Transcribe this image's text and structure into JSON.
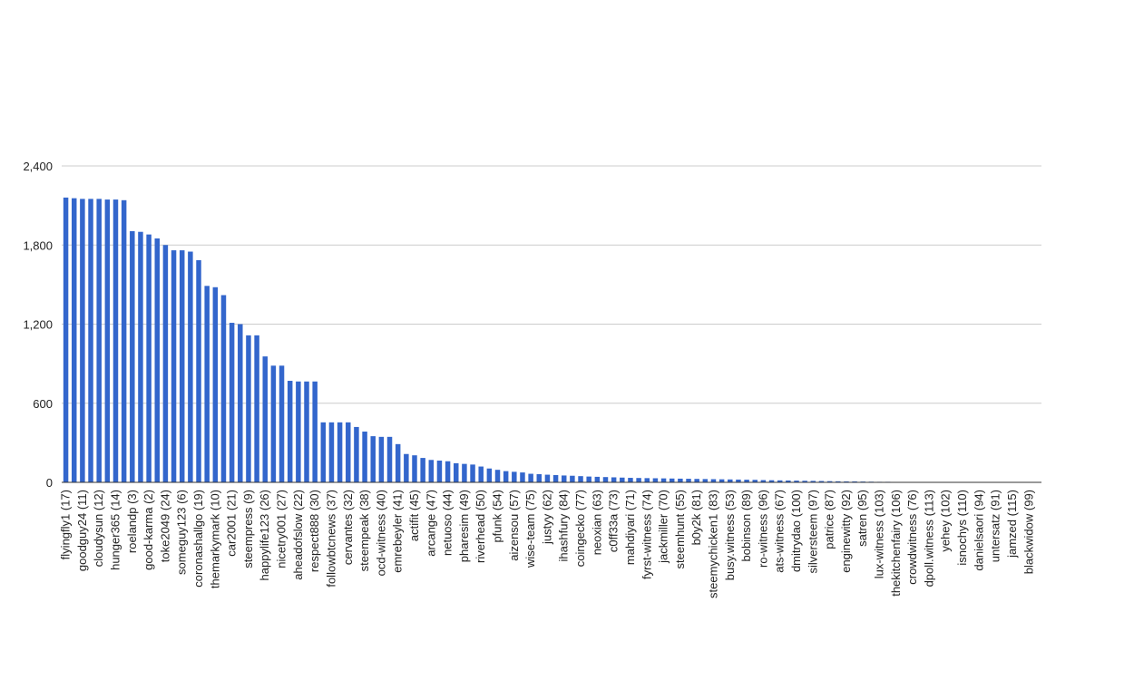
{
  "chart_data": {
    "type": "bar",
    "categories": [
      "flyingfly1 (17)",
      null,
      "goodguy24 (11)",
      null,
      "cloudysun (12)",
      null,
      "hunger365 (14)",
      null,
      "roelandp (3)",
      null,
      "good-karma (2)",
      null,
      "toke2049 (24)",
      null,
      "someguy123 (6)",
      null,
      "coronashallgo (19)",
      null,
      "themarkymark (10)",
      null,
      "car2001 (21)",
      null,
      "steempress (9)",
      null,
      "happylife123 (26)",
      null,
      "nicetry001 (27)",
      null,
      "aheadofslow (22)",
      null,
      "respect888 (30)",
      null,
      "followbtcnews (37)",
      null,
      "cervantes (32)",
      null,
      "steempeak (38)",
      null,
      "ocd-witness (40)",
      null,
      "emrebeyler (41)",
      null,
      "actifit (45)",
      null,
      "arcange (47)",
      null,
      "netuoso (44)",
      null,
      "pharesim (49)",
      null,
      "riverhead (50)",
      null,
      "pfunk (54)",
      null,
      "aizensou (57)",
      null,
      "wise-team (75)",
      null,
      "justyy (62)",
      null,
      "ihashfury (84)",
      null,
      "coingecko (77)",
      null,
      "neoxian (63)",
      null,
      "c0ff33a (73)",
      null,
      "mahdiyari (71)",
      null,
      "fyrst-witness (74)",
      null,
      "jackmiller (70)",
      null,
      "steemhunt (55)",
      null,
      "b0y2k (81)",
      null,
      "steemychicken1 (83)",
      null,
      "busy.witness (53)",
      null,
      "bobinson (89)",
      null,
      "ro-witness (96)",
      null,
      "ats-witness (67)",
      null,
      "dmitrydao (100)",
      null,
      "silversteem (97)",
      null,
      "patrice (87)",
      null,
      "enginewitty (92)",
      null,
      "satren (95)",
      null,
      "lux-witness (103)",
      null,
      "thekitchenfairy (106)",
      null,
      "crowdwitness (76)",
      null,
      "dpoll.witness (113)",
      null,
      "yehey (102)",
      null,
      "isnochys (110)",
      null,
      "danielsaori (94)",
      null,
      "untersatz (91)",
      null,
      "jamzed (115)",
      null,
      "blackwidow (99)",
      null
    ],
    "values": [
      2160,
      2155,
      2150,
      2150,
      2150,
      2145,
      2145,
      2140,
      1905,
      1900,
      1880,
      1850,
      1800,
      1760,
      1760,
      1750,
      1685,
      1490,
      1480,
      1420,
      1210,
      1200,
      1115,
      1115,
      955,
      885,
      885,
      770,
      765,
      765,
      765,
      455,
      455,
      455,
      455,
      420,
      385,
      350,
      345,
      345,
      290,
      215,
      205,
      185,
      170,
      165,
      160,
      145,
      140,
      135,
      120,
      105,
      95,
      85,
      80,
      75,
      65,
      62,
      58,
      55,
      52,
      50,
      47,
      44,
      42,
      40,
      38,
      36,
      34,
      33,
      32,
      31,
      30,
      29,
      28,
      27,
      26,
      25,
      24,
      23,
      22,
      21,
      20,
      19,
      17,
      16,
      15,
      14,
      13,
      12,
      11,
      10,
      9,
      8,
      7,
      7,
      6,
      5,
      4,
      4,
      3,
      3,
      2,
      2,
      1,
      1,
      1,
      1,
      0,
      0,
      0,
      0,
      0,
      0,
      0,
      0,
      0,
      0
    ],
    "color": "#3366cc",
    "ylim": [
      0,
      2400
    ],
    "yticks": [
      0,
      600,
      {
        "value": 1200,
        "label": "1,200"
      },
      {
        "value": 1800,
        "label": "1,800"
      },
      {
        "value": 2400,
        "label": "2,400"
      }
    ],
    "grid": true
  }
}
